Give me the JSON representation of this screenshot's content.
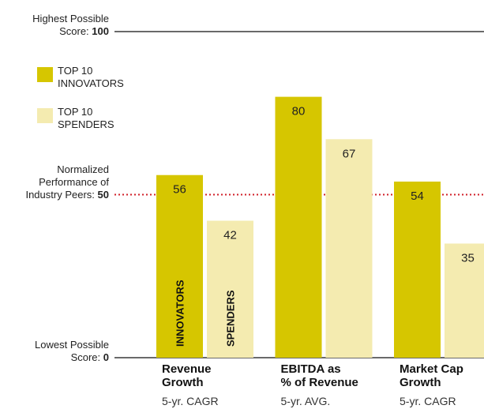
{
  "chart_data": {
    "type": "bar",
    "categories": [
      "Revenue\nGrowth",
      "EBITDA as\n% of Revenue",
      "Market Cap\nGrowth"
    ],
    "category_notes": [
      "5-yr. CAGR",
      "5-yr. AVG.",
      "5-yr. CAGR"
    ],
    "series": [
      {
        "name": "TOP 10\nINNOVATORS",
        "color": "#d6c600",
        "values": [
          56,
          80,
          54
        ]
      },
      {
        "name": "TOP 10\nSPENDERS",
        "color": "#f4ebb0",
        "values": [
          42,
          67,
          35
        ]
      }
    ],
    "bar_annotations": [
      "INNOVATORS",
      "SPENDERS"
    ],
    "ylim": [
      0,
      100
    ],
    "yticks": [
      0,
      50,
      100
    ],
    "ytick_captions": [
      "Lowest Possible\nScore:",
      "Normalized\nPerformance of\nIndustry Peers:",
      "Highest Possible\nScore:"
    ],
    "reference_color": "#d0202a"
  }
}
